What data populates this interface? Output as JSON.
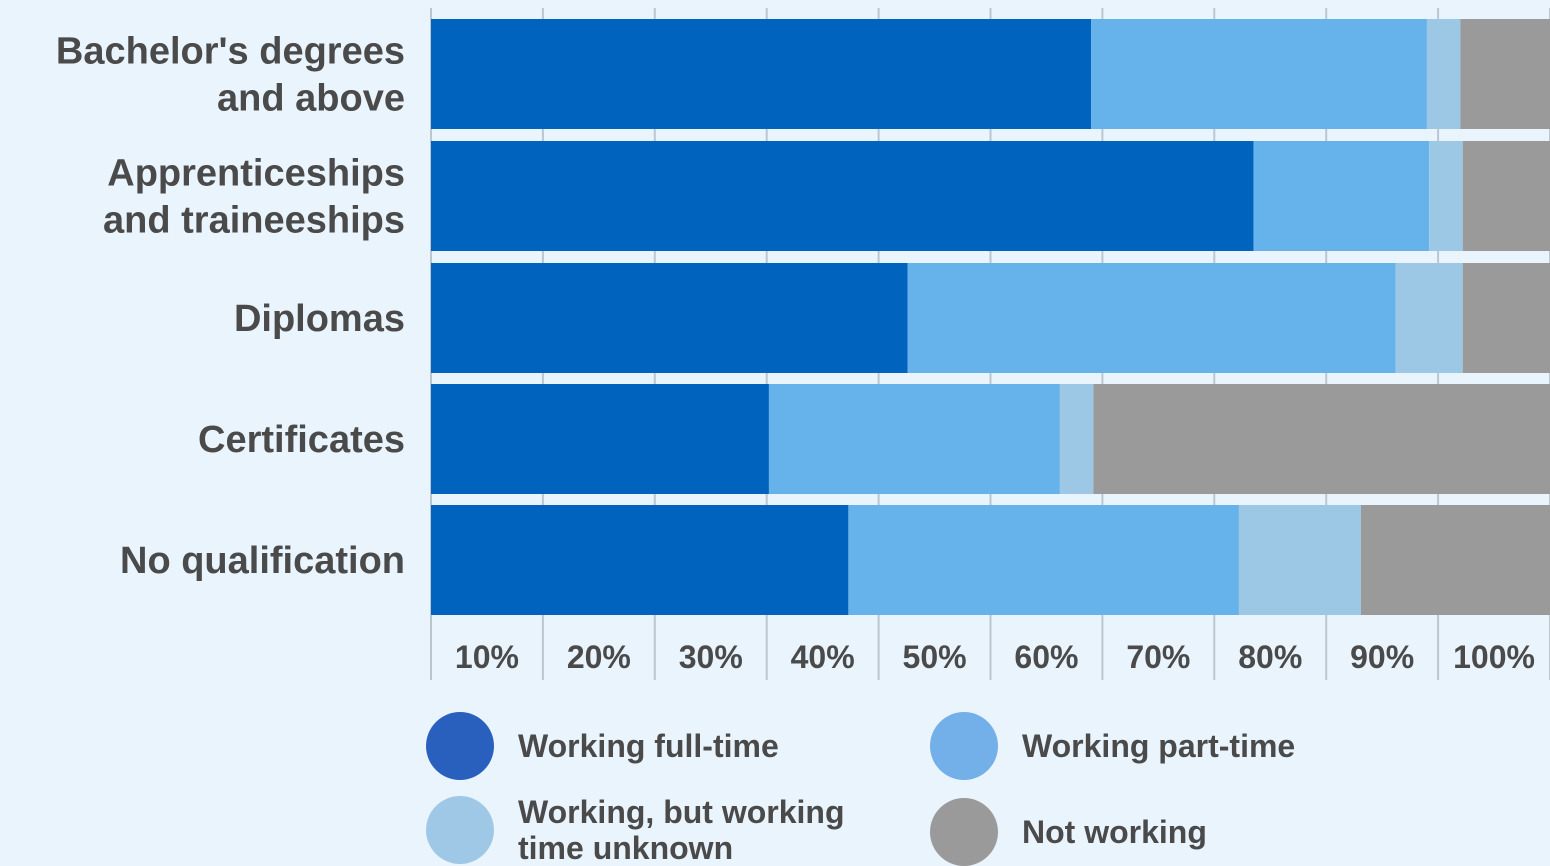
{
  "chart_data": {
    "type": "bar",
    "orientation": "horizontal",
    "stacked": true,
    "categories": [
      "Bachelor's degrees and above",
      "Apprenticeships and traineeships",
      "Diplomas",
      "Certificates",
      "No qualification"
    ],
    "category_lines": [
      [
        "Bachelor's degrees",
        "and above"
      ],
      [
        "Apprenticeships",
        "and traineeships"
      ],
      [
        "Diplomas"
      ],
      [
        "Certificates"
      ],
      [
        "No qualification"
      ]
    ],
    "series": [
      {
        "name": "Working full-time",
        "color": "#0064bf",
        "values": [
          59,
          73.5,
          42.6,
          30.2,
          37.3
        ]
      },
      {
        "name": "Working part-time",
        "color": "#66b2ea",
        "values": [
          30,
          15.7,
          43.6,
          26,
          34.9
        ]
      },
      {
        "name": "Working, but working time unknown",
        "color": "#9cc8e6",
        "values": [
          3,
          3,
          6,
          3,
          10.9
        ]
      },
      {
        "name": "Not working",
        "color": "#9a9a9a",
        "values": [
          8,
          7.8,
          7.8,
          40.8,
          16.9
        ]
      }
    ],
    "x_ticks": [
      10,
      20,
      30,
      40,
      50,
      60,
      70,
      80,
      90,
      100
    ],
    "x_tick_labels": [
      "10%",
      "20%",
      "30%",
      "40%",
      "50%",
      "60%",
      "70%",
      "80%",
      "90%",
      "100%"
    ],
    "xlim": [
      0,
      100
    ],
    "grid": true,
    "legend_position": "bottom",
    "legend_colors": [
      "#2a60bd",
      "#73b0ea",
      "#9fc8e6",
      "#9a9a9a"
    ],
    "title": "",
    "xlabel": "",
    "ylabel": ""
  }
}
